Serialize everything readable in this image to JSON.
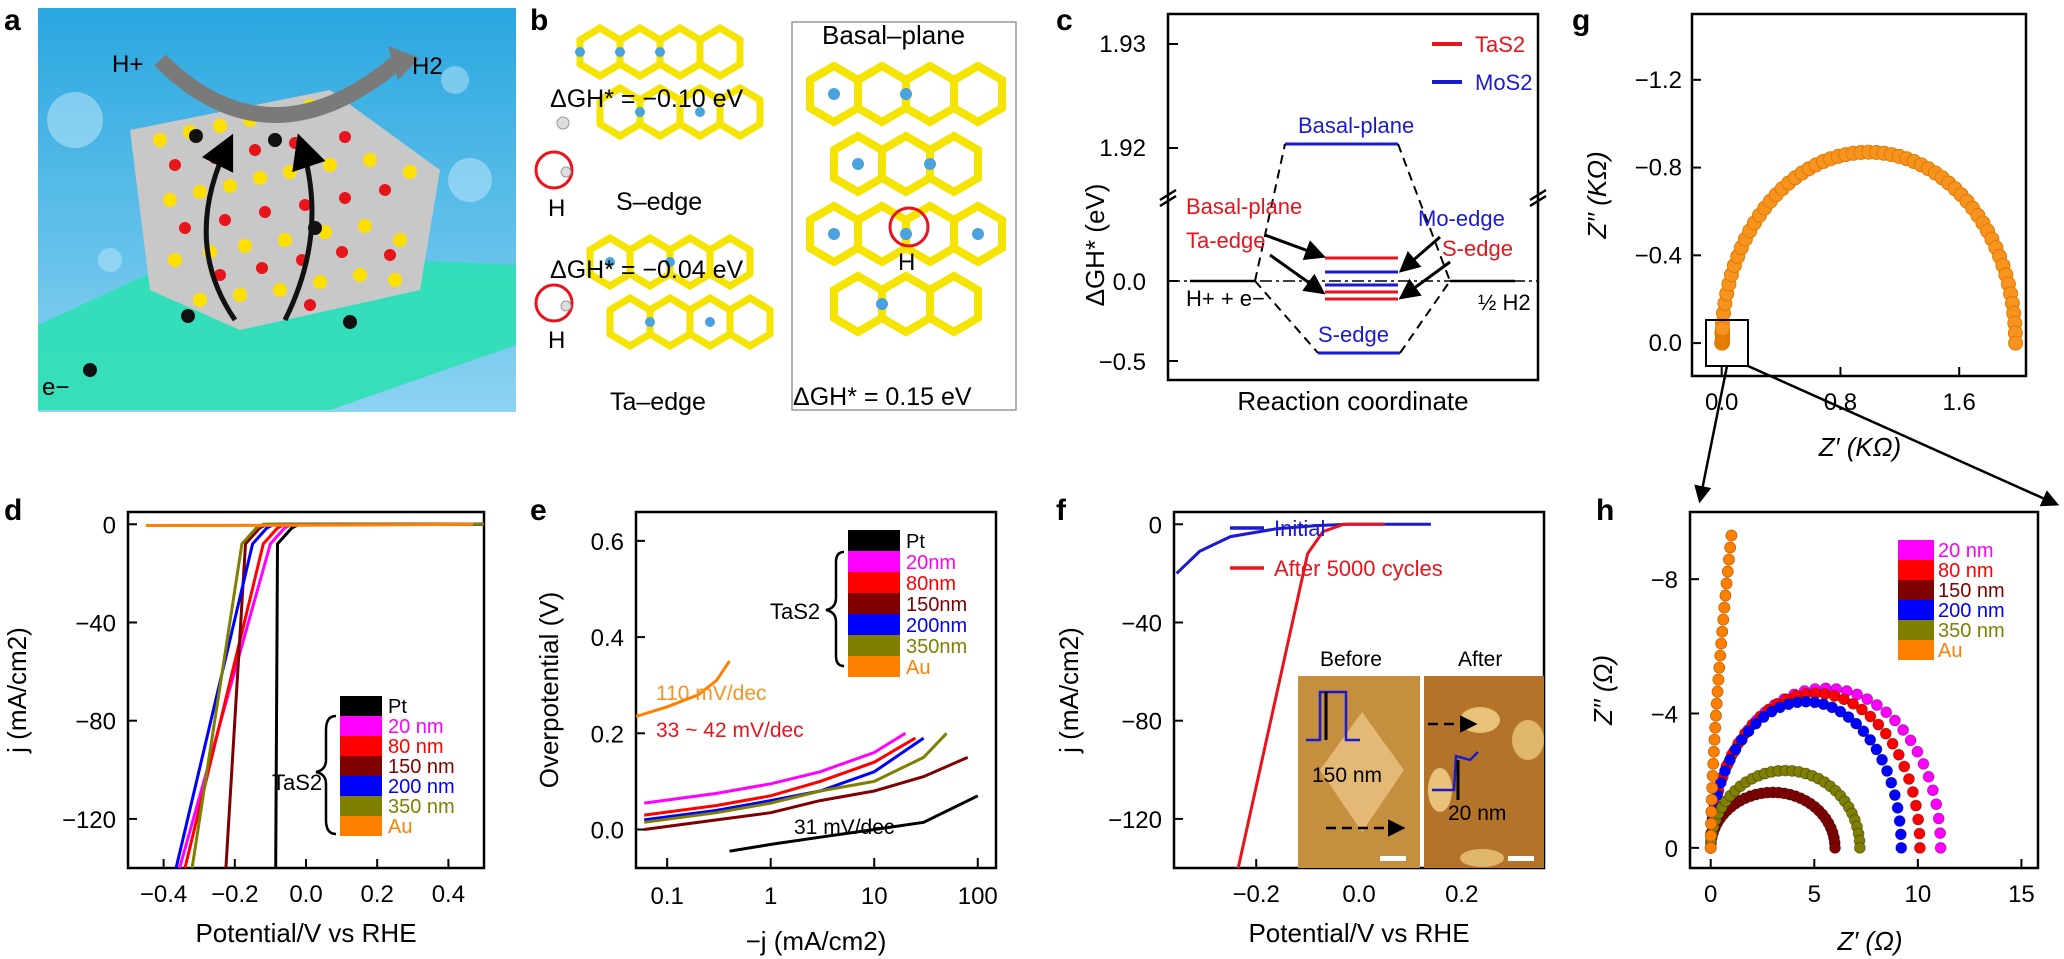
{
  "panel_letters": {
    "a": "a",
    "b": "b",
    "c": "c",
    "d": "d",
    "e": "e",
    "f": "f",
    "g": "g",
    "h": "h"
  },
  "panel_a": {
    "h_plus": "H+",
    "h2": "H2",
    "e_minus": "e−"
  },
  "panel_b": {
    "basal_title": "Basal–plane",
    "dg_s_edge": "ΔGH* = −0.10 eV",
    "dg_ta_edge": "ΔGH* = −0.04 eV",
    "dg_basal": "ΔGH* = 0.15 eV",
    "s_edge": "S–edge",
    "ta_edge": "Ta–edge",
    "h_label": "H"
  },
  "colors": {
    "pt": "#000000",
    "nm20": "#ff00ff",
    "nm80": "#ff0000",
    "nm150": "#7f0000",
    "nm200": "#0000ff",
    "nm350": "#7f7f00",
    "au": "#ff8000",
    "tas2": "#e8141c",
    "mos2": "#1a1ad0",
    "orange": "#f7931e"
  },
  "chart_data": [
    {
      "id": "c",
      "type": "line",
      "title": "",
      "xlabel": "Reaction coordinate",
      "ylabel": "ΔGH* (eV)",
      "y_ticks": [
        "1.93",
        "1.92",
        "0.0",
        "−0.5"
      ],
      "legend": [
        {
          "name": "TaS2",
          "color": "#e8141c"
        },
        {
          "name": "MoS2",
          "color": "#1a1ad0"
        }
      ],
      "levels": {
        "start": 0.0,
        "end": 0.0,
        "mos2_basal": 1.92,
        "mos2_s_edge": -0.45
      },
      "labels": {
        "mos2_basal": "Basal-plane",
        "mos2_s_edge": "S-edge",
        "tas2_basal": "Basal-plane",
        "tas2_ta_edge": "Ta-edge",
        "mos2_mo_edge": "Mo-edge",
        "tas2_s_edge": "S-edge",
        "left": "H+ + e−",
        "right": "½ H2"
      }
    },
    {
      "id": "d",
      "type": "line",
      "xlabel": "Potential/V vs RHE",
      "ylabel": "j (mA/cm2)",
      "xlim": [
        -0.5,
        0.5
      ],
      "ylim": [
        -140,
        5
      ],
      "x_ticks": [
        -0.4,
        -0.2,
        0.0,
        0.2,
        0.4
      ],
      "y_ticks": [
        0,
        -40,
        -80,
        -120
      ],
      "x_tick_labels": [
        "−0.4",
        "−0.2",
        "0.0",
        "0.2",
        "0.4"
      ],
      "y_tick_labels": [
        "0",
        "−40",
        "−80",
        "−120"
      ],
      "legend_group": "TaS2",
      "series": [
        {
          "name": "Pt",
          "onset": -0.04,
          "x_at_min": -0.085
        },
        {
          "name": "20 nm",
          "onset": -0.06,
          "x_at_min": -0.355
        },
        {
          "name": "80 nm",
          "onset": -0.08,
          "x_at_min": -0.34
        },
        {
          "name": "150 nm",
          "onset": -0.13,
          "x_at_min": -0.225
        },
        {
          "name": "200 nm",
          "onset": -0.11,
          "x_at_min": -0.365
        },
        {
          "name": "350 nm",
          "onset": -0.14,
          "x_at_min": -0.32
        },
        {
          "name": "Au",
          "onset": -0.5,
          "x_at_min": 0.47
        }
      ]
    },
    {
      "id": "e",
      "type": "line",
      "xscale": "log",
      "xlabel": "−j (mA/cm2)",
      "ylabel": "Overpotential (V)",
      "xlim": [
        0.05,
        150
      ],
      "ylim": [
        -0.08,
        0.66
      ],
      "x_tick_labels": [
        "0.1",
        "1",
        "10",
        "100"
      ],
      "y_tick_labels": [
        "0.0",
        "0.2",
        "0.4",
        "0.6"
      ],
      "legend_group": "TaS2",
      "annotations": [
        "110 mV/dec",
        "33 ~ 42 mV/dec",
        "31 mV/dec"
      ],
      "series": [
        {
          "name": "Pt",
          "x": [
            0.4,
            1,
            3,
            10,
            30,
            100
          ],
          "y": [
            -0.045,
            -0.031,
            -0.016,
            0.0,
            0.015,
            0.07
          ]
        },
        {
          "name": "20nm",
          "x": [
            0.06,
            0.3,
            1,
            3,
            10,
            20
          ],
          "y": [
            0.055,
            0.075,
            0.095,
            0.12,
            0.16,
            0.2
          ]
        },
        {
          "name": "80nm",
          "x": [
            0.06,
            0.3,
            1,
            3,
            10,
            25
          ],
          "y": [
            0.03,
            0.05,
            0.07,
            0.1,
            0.14,
            0.19
          ]
        },
        {
          "name": "150nm",
          "x": [
            0.06,
            0.3,
            1,
            3,
            10,
            30,
            80
          ],
          "y": [
            0.0,
            0.02,
            0.035,
            0.06,
            0.08,
            0.11,
            0.15
          ]
        },
        {
          "name": "200nm",
          "x": [
            0.06,
            0.3,
            1,
            3,
            10,
            30
          ],
          "y": [
            0.02,
            0.04,
            0.06,
            0.08,
            0.12,
            0.19
          ]
        },
        {
          "name": "350nm",
          "x": [
            0.06,
            0.3,
            1,
            3,
            10,
            30,
            50
          ],
          "y": [
            0.015,
            0.035,
            0.055,
            0.08,
            0.1,
            0.15,
            0.2
          ]
        },
        {
          "name": "Au",
          "x": [
            0.05,
            0.1,
            0.2,
            0.3,
            0.4
          ],
          "y": [
            0.235,
            0.255,
            0.28,
            0.31,
            0.35
          ]
        }
      ]
    },
    {
      "id": "f",
      "type": "line",
      "xlabel": "Potential/V vs RHE",
      "ylabel": "j (mA/cm2)",
      "xlim": [
        -0.36,
        0.36
      ],
      "ylim": [
        -140,
        5
      ],
      "x_tick_labels": [
        "−0.2",
        "0.0",
        "0.2"
      ],
      "y_tick_labels": [
        "0",
        "−40",
        "−80",
        "−120"
      ],
      "series": [
        {
          "name": "Initial",
          "color": "#1a1ad0"
        },
        {
          "name": "After 5000 cycles",
          "color": "#e8141c"
        }
      ],
      "inset": {
        "before": "Before",
        "after": "After",
        "h_before": "150 nm",
        "h_after": "20 nm"
      }
    },
    {
      "id": "g",
      "type": "scatter",
      "xlabel": "Z′ (KΩ)",
      "ylabel": "Z′′ (KΩ)",
      "xlim": [
        -0.2,
        2.05
      ],
      "ylim": [
        0.15,
        -1.5
      ],
      "x_tick_labels": [
        "0.0",
        "0.8",
        "1.6"
      ],
      "y_tick_labels": [
        "−1.2",
        "−0.8",
        "−0.4",
        "0.0"
      ],
      "semicircle": {
        "x0": 0.0,
        "x1": 1.98,
        "peak": -0.87
      }
    },
    {
      "id": "h",
      "type": "scatter",
      "xlabel": "Z′ (Ω)",
      "ylabel": "Z′′ (Ω)",
      "xlim": [
        -1,
        15.8
      ],
      "ylim": [
        0.6,
        -10
      ],
      "x_tick_labels": [
        "0",
        "5",
        "10",
        "15"
      ],
      "y_tick_labels": [
        "−8",
        "−4",
        "0"
      ],
      "series": [
        {
          "name": "20 nm",
          "x0": 0.0,
          "x1": 11.1,
          "peak": -4.75
        },
        {
          "name": "80 nm",
          "x0": 0.0,
          "x1": 10.1,
          "peak": -4.6
        },
        {
          "name": "150 nm",
          "x0": 0.0,
          "x1": 6.0,
          "peak": -1.65
        },
        {
          "name": "200 nm",
          "x0": 0.0,
          "x1": 9.2,
          "peak": -4.35
        },
        {
          "name": "350 nm",
          "x0": 0.0,
          "x1": 7.2,
          "peak": -2.3
        },
        {
          "name": "Au",
          "x_end": 1.0,
          "y_end": -9.3
        }
      ]
    }
  ]
}
